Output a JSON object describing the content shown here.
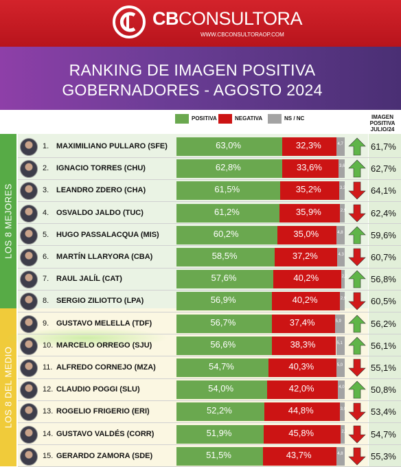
{
  "brand": {
    "name_bold": "CB",
    "name_rest": "CONSULTORA",
    "url": "WWW.CBCONSULTORAOP.COM"
  },
  "title": {
    "line1": "RANKING DE IMAGEN POSITIVA",
    "line2": "GOBERNADORES - AGOSTO 2024"
  },
  "legend": {
    "positive": "POSITIVA",
    "negative": "NEGATIVA",
    "ns": "NS / NC"
  },
  "column_header": {
    "line1": "IMAGEN",
    "line2": "POSITIVA",
    "line3": "JULIO/24"
  },
  "groups": {
    "top": "LOS 8 MEJORES",
    "middle": "LOS 8 DEL MEDIO"
  },
  "colors": {
    "positive": "#6aa84f",
    "negative": "#cc1414",
    "ns": "#a3a3a3",
    "arrow_up": "#5fb548",
    "arrow_down": "#d11a1a",
    "header_red": "#c71c24"
  },
  "chart_data": {
    "type": "bar",
    "stacked": true,
    "orientation": "horizontal",
    "title": "RANKING DE IMAGEN POSITIVA GOBERNADORES - AGOSTO 2024",
    "categories": [
      "MAXIMILIANO PULLARO (SFE)",
      "IGNACIO TORRES (CHU)",
      "LEANDRO ZDERO (CHA)",
      "OSVALDO JALDO (TUC)",
      "HUGO PASSALACQUA (MIS)",
      "MARTÍN LLARYORA (CBA)",
      "RAUL JALÍL (CAT)",
      "SERGIO ZILIOTTO (LPA)",
      "GUSTAVO MELELLA (TDF)",
      "MARCELO ORREGO (SJU)",
      "ALFREDO CORNEJO (MZA)",
      "CLAUDIO POGGI (SLU)",
      "ROGELIO FRIGERIO (ERI)",
      "GUSTAVO VALDÉS (CORR)",
      "GERARDO ZAMORA (SDE)"
    ],
    "series": [
      {
        "name": "POSITIVA",
        "values": [
          63.0,
          62.8,
          61.5,
          61.2,
          60.2,
          58.5,
          57.6,
          56.9,
          56.7,
          56.6,
          54.7,
          54.0,
          52.2,
          51.9,
          51.5
        ],
        "labels": [
          "63,0%",
          "62,8%",
          "61,5%",
          "61,2%",
          "60,2%",
          "58,5%",
          "57,6%",
          "56,9%",
          "56,7%",
          "56,6%",
          "54,7%",
          "54,0%",
          "52,2%",
          "51,9%",
          "51,5%"
        ]
      },
      {
        "name": "NEGATIVA",
        "values": [
          32.3,
          33.6,
          35.2,
          35.9,
          35.0,
          37.2,
          40.2,
          40.2,
          37.4,
          38.3,
          40.3,
          42.0,
          44.8,
          45.8,
          43.7
        ],
        "labels": [
          "32,3%",
          "33,6%",
          "35,2%",
          "35,9%",
          "35,0%",
          "37,2%",
          "40,2%",
          "40,2%",
          "37,4%",
          "38,3%",
          "40,3%",
          "42,0%",
          "44,8%",
          "45,8%",
          "43,7%"
        ]
      },
      {
        "name": "NS / NC",
        "values": [
          4.7,
          3.6,
          3.3,
          2.9,
          4.8,
          4.3,
          2.2,
          2.9,
          5.9,
          5.1,
          5.0,
          4.0,
          3.0,
          2.3,
          4.8
        ],
        "labels": [
          "4,7",
          "3,6",
          "3,3",
          "2,9",
          "4,8",
          "4,3",
          "2,2",
          "2,9",
          "5,9",
          "5,1",
          "5,0",
          "4,0",
          "3,0",
          "2,3",
          "4,8"
        ]
      }
    ],
    "previous": {
      "name": "IMAGEN POSITIVA JULIO/24",
      "values": [
        61.7,
        62.7,
        64.1,
        62.4,
        59.6,
        60.7,
        56.8,
        60.5,
        56.2,
        56.1,
        55.1,
        50.8,
        53.4,
        54.7,
        55.3
      ],
      "labels": [
        "61,7%",
        "62,7%",
        "64,1%",
        "62,4%",
        "59,6%",
        "60,7%",
        "56,8%",
        "60,5%",
        "56,2%",
        "56,1%",
        "55,1%",
        "50,8%",
        "53,4%",
        "54,7%",
        "55,3%"
      ]
    },
    "trend": [
      "up",
      "up",
      "down",
      "down",
      "up",
      "down",
      "up",
      "down",
      "up",
      "up",
      "down",
      "up",
      "down",
      "down",
      "down"
    ],
    "ylim": [
      0,
      100
    ]
  }
}
